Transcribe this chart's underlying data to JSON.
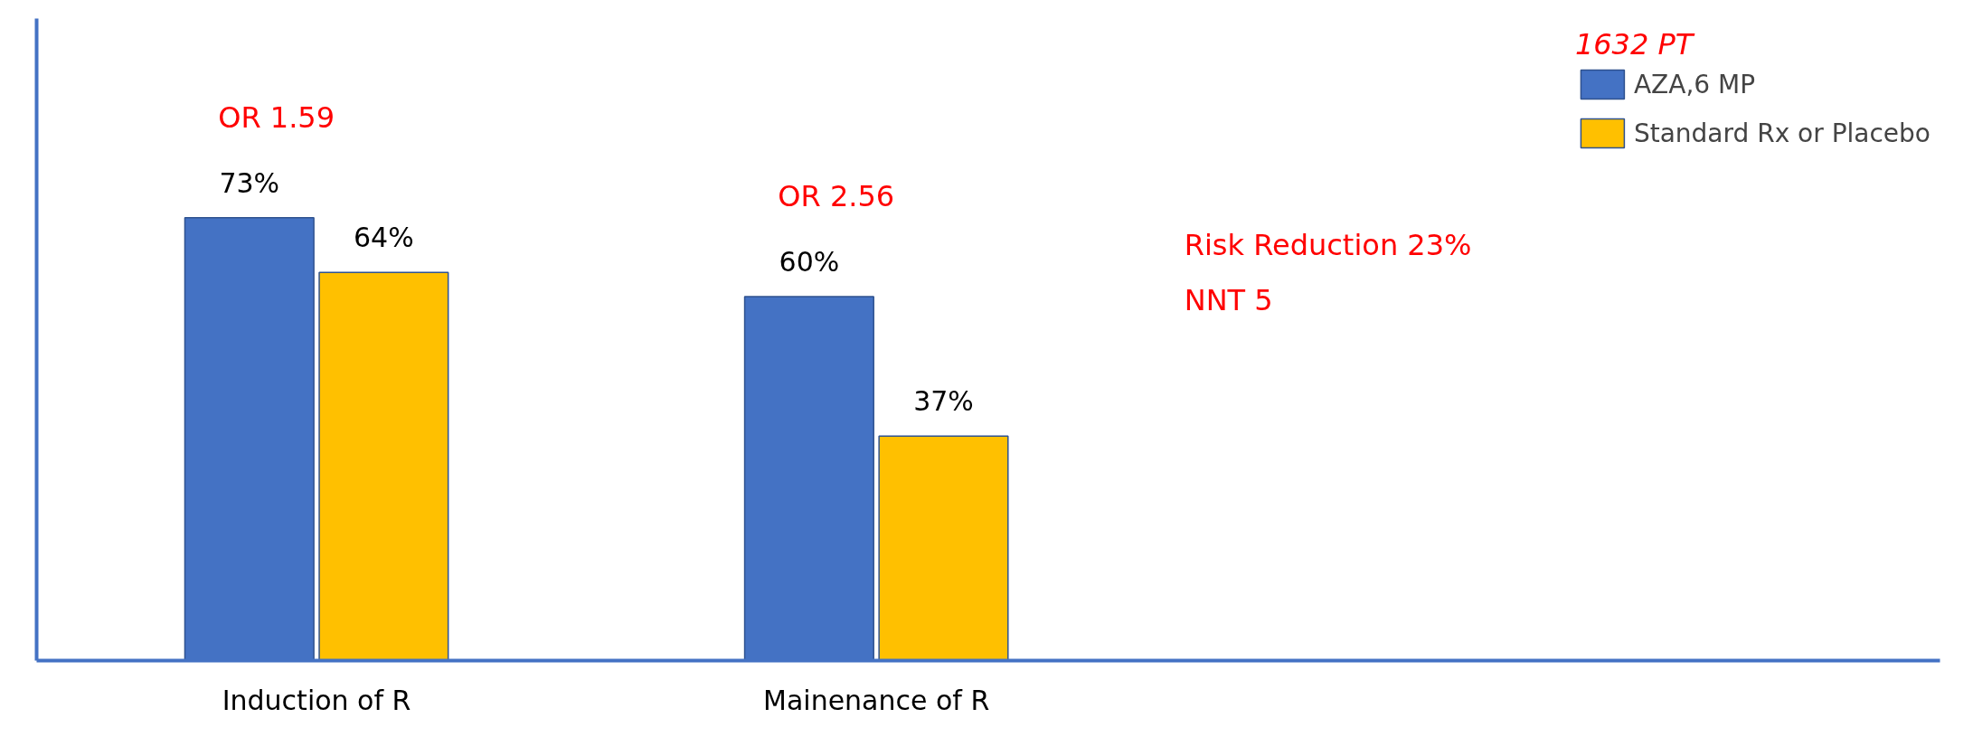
{
  "chart_data": {
    "type": "bar",
    "categories": [
      "Induction of R",
      "Mainenance of R"
    ],
    "series": [
      {
        "name": "AZA,6 MP",
        "color": "#4472c4",
        "values": [
          73,
          60
        ],
        "value_labels": [
          "73%",
          "60%"
        ]
      },
      {
        "name": "Standard Rx or Placebo",
        "color": "#ffc000",
        "values": [
          64,
          37
        ],
        "value_labels": [
          "64%",
          "37%"
        ]
      }
    ],
    "legend_title": "1632 PT",
    "legend": "top right",
    "grid": false,
    "tick_labels": "x",
    "annotations": [
      "OR 1.59",
      "OR 2.56",
      "Risk Reduction 23%",
      "NNT 5"
    ]
  }
}
